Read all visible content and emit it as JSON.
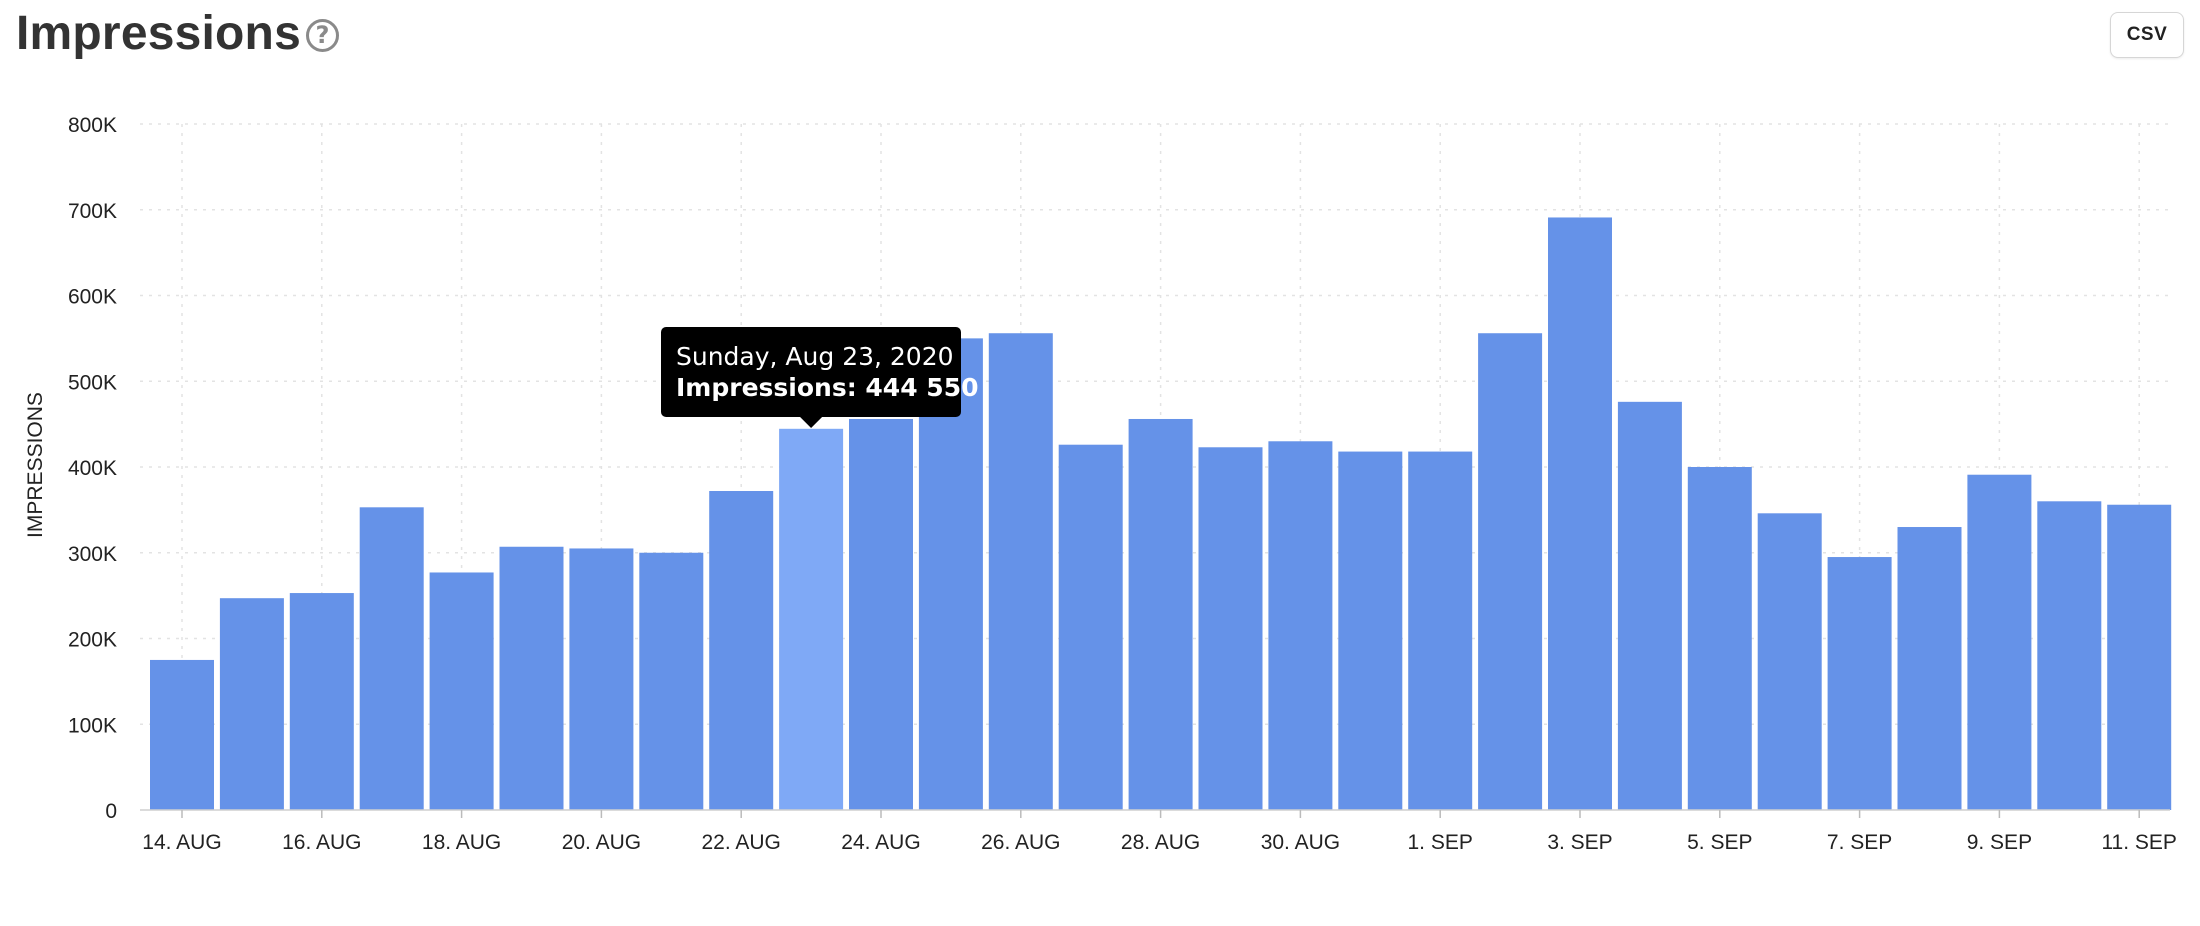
{
  "header": {
    "title": "Impressions",
    "help_icon": "question-circle-icon",
    "help_glyph": "?",
    "csv_label": "CSV"
  },
  "colors": {
    "bar": "#6592e8",
    "bar_highlight": "#7fa9f6",
    "grid": "#e3e3e3",
    "tooltip_bg": "#000000",
    "tooltip_text": "#ffffff"
  },
  "chart_data": {
    "type": "bar",
    "ylabel": "IMPRESSIONS",
    "xlabel": "",
    "ylim": [
      0,
      800000
    ],
    "yticks": [
      {
        "value": 0,
        "label": "0"
      },
      {
        "value": 100000,
        "label": "100K"
      },
      {
        "value": 200000,
        "label": "200K"
      },
      {
        "value": 300000,
        "label": "300K"
      },
      {
        "value": 400000,
        "label": "400K"
      },
      {
        "value": 500000,
        "label": "500K"
      },
      {
        "value": 600000,
        "label": "600K"
      },
      {
        "value": 700000,
        "label": "700K"
      },
      {
        "value": 800000,
        "label": "800K"
      }
    ],
    "categories": [
      "2020-08-14",
      "2020-08-15",
      "2020-08-16",
      "2020-08-17",
      "2020-08-18",
      "2020-08-19",
      "2020-08-20",
      "2020-08-21",
      "2020-08-22",
      "2020-08-23",
      "2020-08-24",
      "2020-08-25",
      "2020-08-26",
      "2020-08-27",
      "2020-08-28",
      "2020-08-29",
      "2020-08-30",
      "2020-08-31",
      "2020-09-01",
      "2020-09-02",
      "2020-09-03",
      "2020-09-04",
      "2020-09-05",
      "2020-09-06",
      "2020-09-07",
      "2020-09-08",
      "2020-09-09",
      "2020-09-10",
      "2020-09-11"
    ],
    "x_tick_labels": [
      "14. AUG",
      "",
      "16. AUG",
      "",
      "18. AUG",
      "",
      "20. AUG",
      "",
      "22. AUG",
      "",
      "24. AUG",
      "",
      "26. AUG",
      "",
      "28. AUG",
      "",
      "30. AUG",
      "",
      "1. SEP",
      "",
      "3. SEP",
      "",
      "5. SEP",
      "",
      "7. SEP",
      "",
      "9. SEP",
      "",
      "11. SEP"
    ],
    "series": [
      {
        "values": [
          175000,
          247000,
          253000,
          353000,
          277000,
          307000,
          305000,
          300000,
          372000,
          444550,
          456000,
          550000,
          556000,
          426000,
          456000,
          423000,
          430000,
          418000,
          418000,
          556000,
          691000,
          476000,
          400000,
          346000,
          295000,
          330000,
          391000,
          360000,
          356000
        ]
      }
    ],
    "highlight_index": 9,
    "grid": true,
    "tooltip": {
      "date": "Sunday, Aug 23, 2020",
      "label": "Impressions: 444 550"
    }
  }
}
